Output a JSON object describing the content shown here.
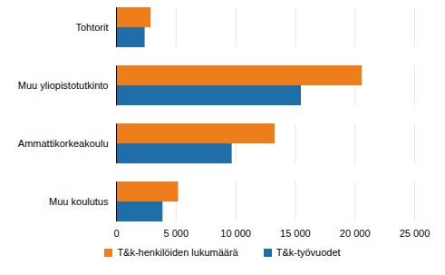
{
  "chart_data": {
    "type": "bar",
    "orientation": "horizontal",
    "categories": [
      "Tohtorit",
      "Muu yliopistotutkinto",
      "Ammattikorkeakoulu",
      "Muu koulutus"
    ],
    "series": [
      {
        "name": "T&k-henkilöiden lukumäärä",
        "color": "#ee7d1c",
        "values": [
          2900,
          20600,
          13300,
          5200
        ]
      },
      {
        "name": "T&k-työvuodet",
        "color": "#1f6ea8",
        "values": [
          2400,
          15500,
          9700,
          3900
        ]
      }
    ],
    "xlim": [
      0,
      25000
    ],
    "xticks": [
      0,
      {
        "value": 5000,
        "label": "5 000"
      },
      {
        "value": 10000,
        "label": "10 000"
      },
      {
        "value": 15000,
        "label": "15 000"
      },
      {
        "value": 20000,
        "label": "20 000"
      },
      {
        "value": 25000,
        "label": "25 000"
      }
    ],
    "grid": true,
    "legend": "bottom"
  }
}
